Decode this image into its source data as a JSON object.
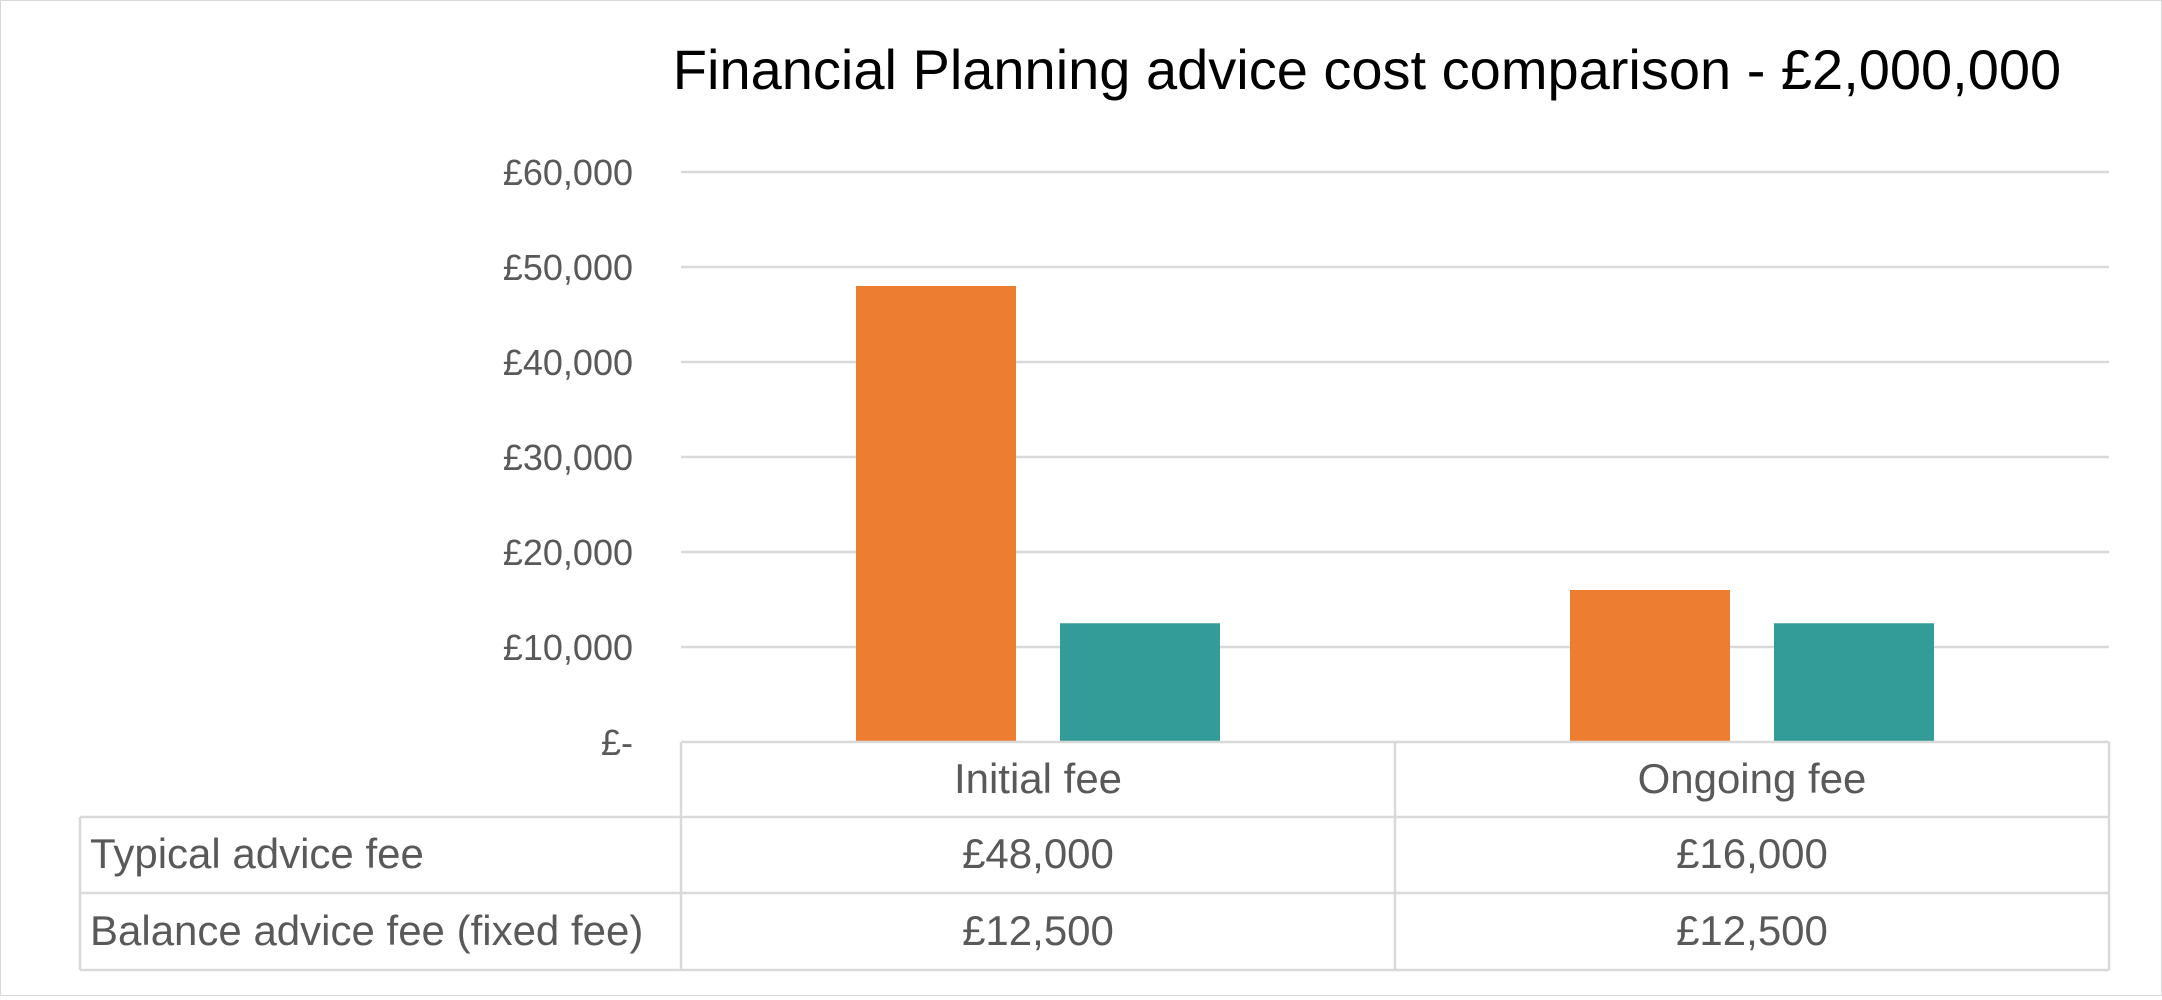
{
  "chart_data": {
    "type": "bar",
    "title": "Financial Planning advice cost comparison - £2,000,000",
    "categories": [
      "Initial fee",
      "Ongoing fee"
    ],
    "series": [
      {
        "name": "Typical advice fee",
        "values": [
          48000,
          16000
        ],
        "labels": [
          "£48,000",
          "£16,000"
        ],
        "color": "#ED7D31"
      },
      {
        "name": "Balance advice fee (fixed fee)",
        "values": [
          12500,
          12500
        ],
        "labels": [
          "£12,500",
          "£12,500"
        ],
        "color": "#339B98"
      }
    ],
    "ylim": [
      0,
      60000
    ],
    "yticks": [
      0,
      10000,
      20000,
      30000,
      40000,
      50000,
      60000
    ],
    "ytick_labels": [
      "£-",
      "£10,000",
      "£20,000",
      "£30,000",
      "£40,000",
      "£50,000",
      "£60,000"
    ],
    "grid": true,
    "legend": "data-table-below"
  }
}
